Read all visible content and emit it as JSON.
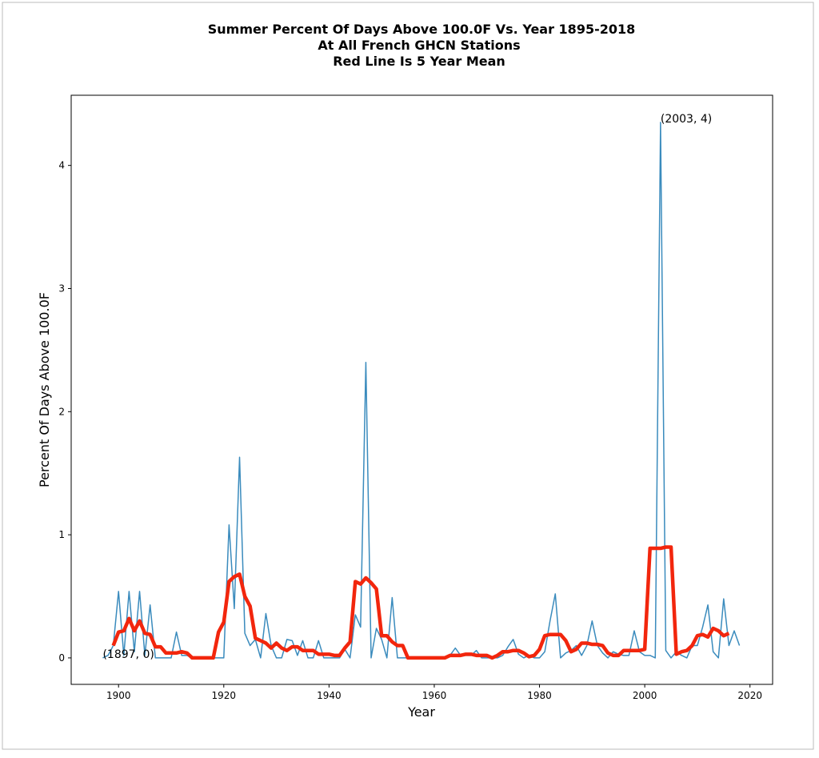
{
  "chart_data": {
    "type": "line",
    "title": "Summer Percent Of Days Above 100.0F Vs. Year 1895-2018",
    "subtitle": "At All French GHCN Stations",
    "subtitle2": "Red Line Is 5 Year Mean",
    "xlabel": "Year",
    "ylabel": "Percent Of Days Above 100.0F",
    "xlim": [
      1891,
      2024.3
    ],
    "ylim": [
      -0.215,
      4.57
    ],
    "xticks": [
      1900,
      1920,
      1940,
      1960,
      1980,
      2000,
      2020
    ],
    "yticks": [
      0,
      1,
      2,
      3,
      4
    ],
    "series": [
      {
        "color": "#3a8bbd",
        "width": 1.5,
        "x": [
          1897,
          1898,
          1899,
          1900,
          1901,
          1902,
          1903,
          1904,
          1905,
          1906,
          1907,
          1908,
          1909,
          1910,
          1911,
          1912,
          1913,
          1914,
          1915,
          1916,
          1917,
          1918,
          1919,
          1920,
          1921,
          1922,
          1923,
          1924,
          1925,
          1926,
          1927,
          1928,
          1929,
          1930,
          1931,
          1932,
          1933,
          1934,
          1935,
          1936,
          1937,
          1938,
          1939,
          1940,
          1941,
          1942,
          1943,
          1944,
          1945,
          1946,
          1947,
          1948,
          1949,
          1950,
          1951,
          1952,
          1953,
          1954,
          1955,
          1956,
          1957,
          1958,
          1959,
          1960,
          1961,
          1962,
          1963,
          1964,
          1965,
          1966,
          1967,
          1968,
          1969,
          1970,
          1971,
          1972,
          1973,
          1974,
          1975,
          1976,
          1977,
          1978,
          1979,
          1980,
          1981,
          1982,
          1983,
          1984,
          1985,
          1986,
          1987,
          1988,
          1989,
          1990,
          1991,
          1992,
          1993,
          1994,
          1995,
          1996,
          1997,
          1998,
          1999,
          2000,
          2001,
          2002,
          2003,
          2004,
          2005,
          2006,
          2007,
          2008,
          2009,
          2010,
          2011,
          2012,
          2013,
          2014,
          2015,
          2016,
          2017,
          2018
        ],
        "values": [
          0,
          0.02,
          0.1,
          0.54,
          0.02,
          0.54,
          0.05,
          0.54,
          0.02,
          0.43,
          0,
          0,
          0,
          0,
          0.21,
          0.02,
          0.02,
          0,
          0,
          0,
          0,
          0,
          0,
          0,
          1.08,
          0.4,
          1.63,
          0.2,
          0.1,
          0.15,
          0,
          0.36,
          0.1,
          0,
          0,
          0.15,
          0.14,
          0.02,
          0.14,
          0,
          0,
          0.14,
          0,
          0,
          0,
          0,
          0.07,
          0,
          0.35,
          0.25,
          2.4,
          0,
          0.24,
          0.15,
          0,
          0.49,
          0,
          0,
          0,
          0,
          0,
          0,
          0,
          0,
          0,
          0,
          0.02,
          0.08,
          0.02,
          0.02,
          0.02,
          0.06,
          0,
          0,
          0,
          0,
          0.02,
          0.09,
          0.15,
          0.03,
          0,
          0.02,
          0,
          0,
          0.05,
          0.3,
          0.52,
          0,
          0.04,
          0.06,
          0.1,
          0.02,
          0.1,
          0.3,
          0.1,
          0.04,
          0,
          0.05,
          0.03,
          0.02,
          0.02,
          0.22,
          0.05,
          0.02,
          0.02,
          0,
          4.35,
          0.06,
          0,
          0.05,
          0.02,
          0,
          0.1,
          0.1,
          0.25,
          0.43,
          0.05,
          0,
          0.48,
          0.1,
          0.22,
          0.1
        ]
      },
      {
        "color": "#f2260d",
        "width": 4.5,
        "x": [
          1899,
          1900,
          1901,
          1902,
          1903,
          1904,
          1905,
          1906,
          1907,
          1908,
          1909,
          1910,
          1911,
          1912,
          1913,
          1914,
          1915,
          1916,
          1917,
          1918,
          1919,
          1920,
          1921,
          1922,
          1923,
          1924,
          1925,
          1926,
          1927,
          1928,
          1929,
          1930,
          1931,
          1932,
          1933,
          1934,
          1935,
          1936,
          1937,
          1938,
          1939,
          1940,
          1941,
          1942,
          1943,
          1944,
          1945,
          1946,
          1947,
          1948,
          1949,
          1950,
          1951,
          1952,
          1953,
          1954,
          1955,
          1956,
          1957,
          1958,
          1959,
          1960,
          1961,
          1962,
          1963,
          1964,
          1965,
          1966,
          1967,
          1968,
          1969,
          1970,
          1971,
          1972,
          1973,
          1974,
          1975,
          1976,
          1977,
          1978,
          1979,
          1980,
          1981,
          1982,
          1983,
          1984,
          1985,
          1986,
          1987,
          1988,
          1989,
          1990,
          1991,
          1992,
          1993,
          1994,
          1995,
          1996,
          1997,
          1998,
          1999,
          2000,
          2001,
          2002,
          2003,
          2004,
          2005,
          2006,
          2007,
          2008,
          2009,
          2010,
          2011,
          2012,
          2013,
          2014,
          2015,
          2016
        ],
        "values": [
          0.1,
          0.21,
          0.22,
          0.32,
          0.22,
          0.3,
          0.2,
          0.19,
          0.09,
          0.09,
          0.04,
          0.04,
          0.04,
          0.05,
          0.04,
          0,
          0,
          0,
          0,
          0,
          0.21,
          0.29,
          0.62,
          0.66,
          0.68,
          0.5,
          0.42,
          0.16,
          0.14,
          0.12,
          0.08,
          0.12,
          0.08,
          0.06,
          0.09,
          0.09,
          0.06,
          0.06,
          0.06,
          0.03,
          0.03,
          0.03,
          0.02,
          0.02,
          0.08,
          0.13,
          0.62,
          0.6,
          0.65,
          0.61,
          0.56,
          0.18,
          0.18,
          0.13,
          0.1,
          0.1,
          0,
          0,
          0,
          0,
          0,
          0,
          0,
          0,
          0.02,
          0.02,
          0.02,
          0.03,
          0.03,
          0.02,
          0.02,
          0.02,
          0,
          0.02,
          0.05,
          0.05,
          0.06,
          0.06,
          0.04,
          0.01,
          0.02,
          0.07,
          0.18,
          0.19,
          0.19,
          0.19,
          0.14,
          0.05,
          0.07,
          0.12,
          0.12,
          0.11,
          0.11,
          0.1,
          0.04,
          0.02,
          0.02,
          0.06,
          0.06,
          0.06,
          0.06,
          0.07,
          0.89,
          0.89,
          0.89,
          0.9,
          0.9,
          0.03,
          0.05,
          0.06,
          0.1,
          0.18,
          0.19,
          0.17,
          0.24,
          0.22,
          0.18,
          0.2
        ]
      }
    ],
    "annotations": [
      {
        "text": "(2003, 4)",
        "x": 2003,
        "y": 4.35
      },
      {
        "text": "(1897, 0)",
        "x": 1897,
        "y": 0
      }
    ]
  }
}
